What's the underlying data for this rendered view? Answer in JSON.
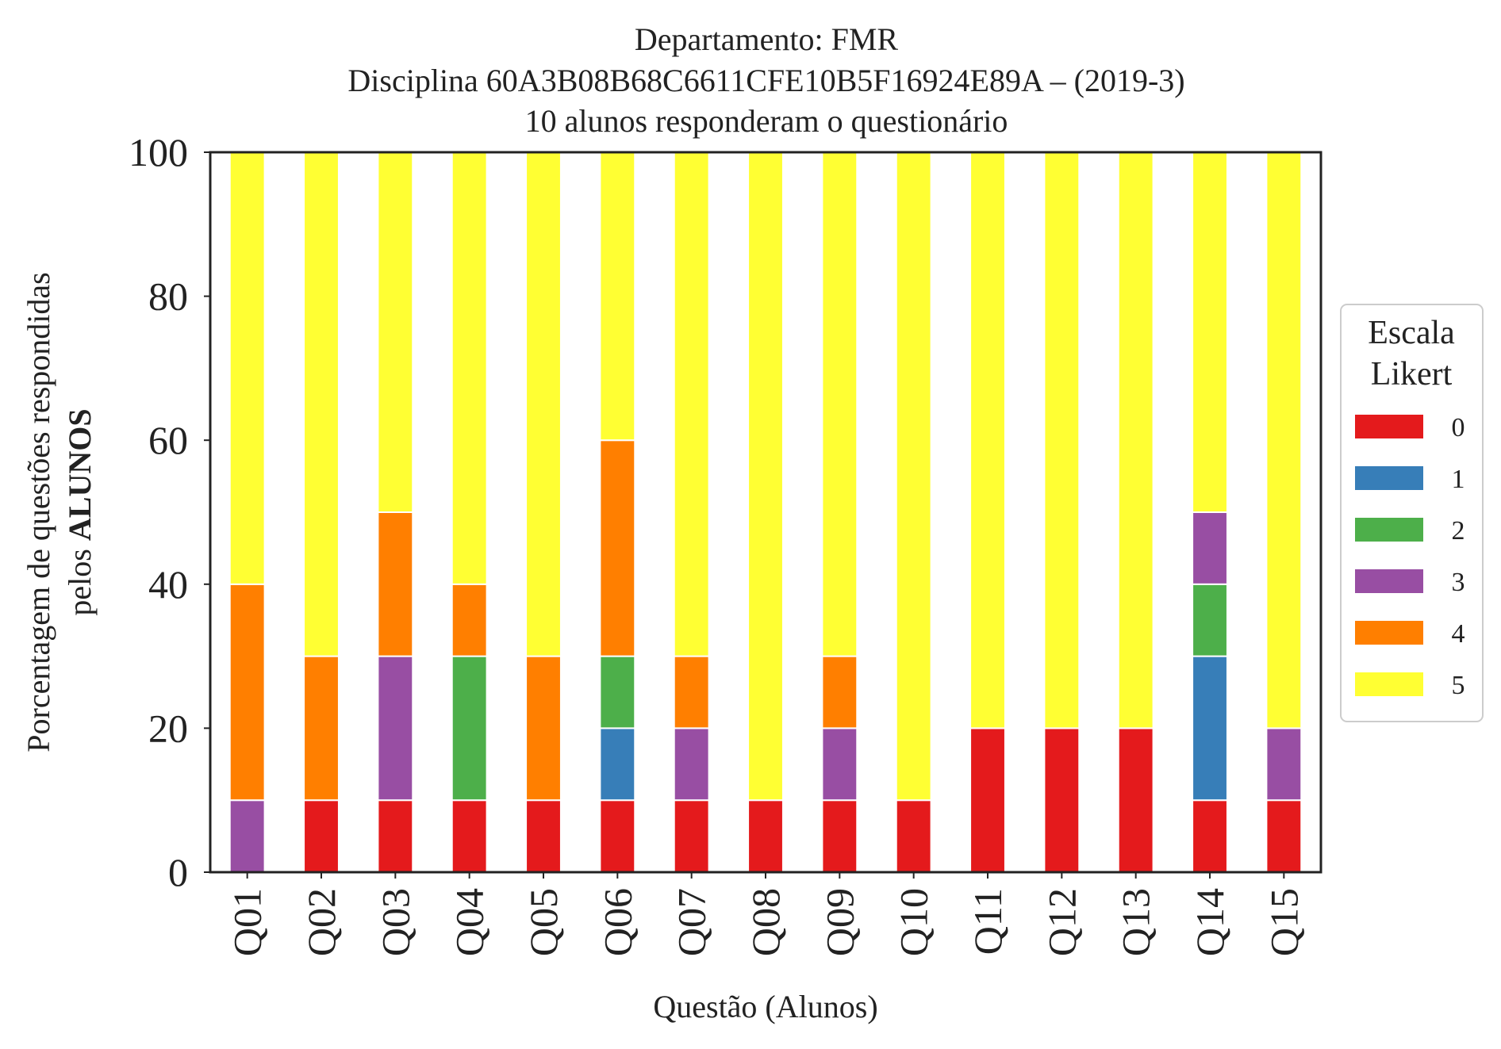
{
  "chart_data": {
    "type": "bar",
    "stacked": true,
    "title_lines": [
      "Departamento: FMR",
      "Disciplina 60A3B08B68C6611CFE10B5F16924E89A – (2019-3)",
      "10 alunos responderam o questionário"
    ],
    "xlabel": "Questão (Alunos)",
    "ylabel_lines": [
      "Porcentagem de questões respondidas",
      "pelos "
    ],
    "ylabel_bold": "ALUNOS",
    "ylim": [
      0,
      100
    ],
    "yticks": [
      "0",
      "20",
      "40",
      "60",
      "80",
      "100"
    ],
    "categories": [
      "Q01",
      "Q02",
      "Q03",
      "Q04",
      "Q05",
      "Q06",
      "Q07",
      "Q08",
      "Q09",
      "Q10",
      "Q11",
      "Q12",
      "Q13",
      "Q14",
      "Q15"
    ],
    "legend": {
      "title_lines": [
        "Escala",
        "Likert"
      ],
      "placement": "center-right outside"
    },
    "grid": false,
    "series": [
      {
        "name": "0",
        "color": "#e41a1c",
        "values": [
          0,
          10,
          10,
          10,
          10,
          10,
          10,
          10,
          10,
          10,
          20,
          20,
          20,
          10,
          10
        ]
      },
      {
        "name": "1",
        "color": "#377eb8",
        "values": [
          0,
          0,
          0,
          0,
          0,
          10,
          0,
          0,
          0,
          0,
          0,
          0,
          0,
          20,
          0
        ]
      },
      {
        "name": "2",
        "color": "#4daf4a",
        "values": [
          0,
          0,
          0,
          20,
          0,
          10,
          0,
          0,
          0,
          0,
          0,
          0,
          0,
          10,
          0
        ]
      },
      {
        "name": "3",
        "color": "#984ea3",
        "values": [
          10,
          0,
          20,
          0,
          0,
          0,
          10,
          0,
          10,
          0,
          0,
          0,
          0,
          10,
          10
        ]
      },
      {
        "name": "4",
        "color": "#ff7f00",
        "values": [
          30,
          20,
          20,
          10,
          20,
          30,
          10,
          0,
          10,
          0,
          0,
          0,
          0,
          0,
          0
        ]
      },
      {
        "name": "5",
        "color": "#ffff33",
        "values": [
          60,
          70,
          50,
          60,
          70,
          40,
          70,
          90,
          70,
          90,
          80,
          80,
          80,
          50,
          80
        ]
      }
    ]
  }
}
